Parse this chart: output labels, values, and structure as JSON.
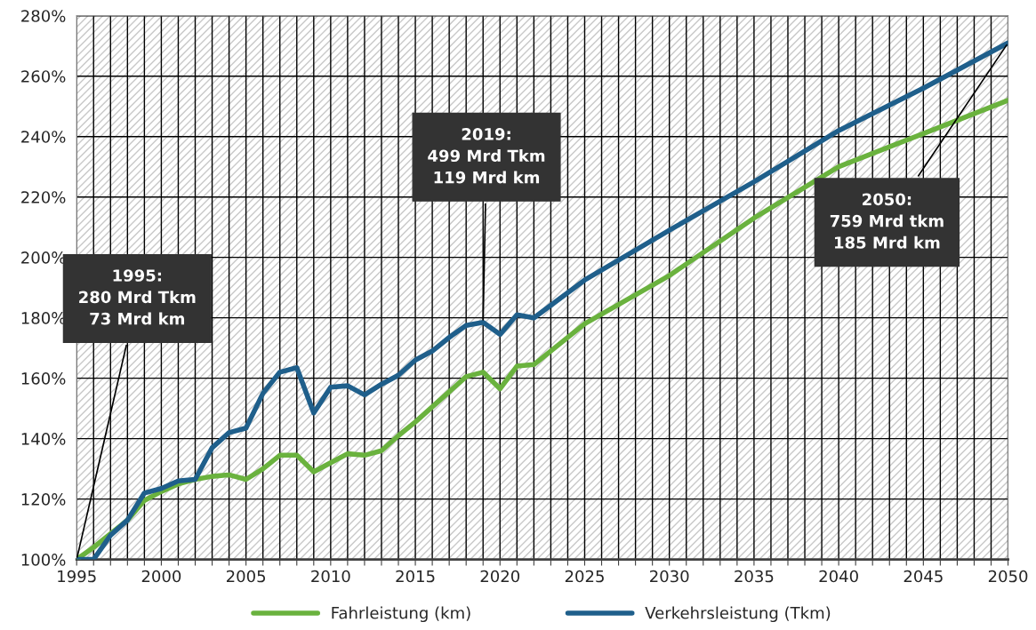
{
  "chart_data": {
    "type": "line",
    "xlim": [
      1995,
      2050
    ],
    "ylim": [
      100,
      280
    ],
    "xticks": [
      {
        "value": 1995,
        "label": "1995"
      },
      {
        "value": 1996,
        "label": null
      },
      {
        "value": 1997,
        "label": null
      },
      {
        "value": 1998,
        "label": null
      },
      {
        "value": 1999,
        "label": null
      },
      {
        "value": 2000,
        "label": "2000"
      },
      {
        "value": 2001,
        "label": null
      },
      {
        "value": 2002,
        "label": null
      },
      {
        "value": 2003,
        "label": null
      },
      {
        "value": 2004,
        "label": null
      },
      {
        "value": 2005,
        "label": "2005"
      },
      {
        "value": 2006,
        "label": null
      },
      {
        "value": 2007,
        "label": null
      },
      {
        "value": 2008,
        "label": null
      },
      {
        "value": 2009,
        "label": null
      },
      {
        "value": 2010,
        "label": "2010"
      },
      {
        "value": 2011,
        "label": null
      },
      {
        "value": 2012,
        "label": null
      },
      {
        "value": 2013,
        "label": null
      },
      {
        "value": 2014,
        "label": null
      },
      {
        "value": 2015,
        "label": "2015"
      },
      {
        "value": 2016,
        "label": null
      },
      {
        "value": 2017,
        "label": null
      },
      {
        "value": 2018,
        "label": null
      },
      {
        "value": 2019,
        "label": null
      },
      {
        "value": 2020,
        "label": "2020"
      },
      {
        "value": 2021,
        "label": null
      },
      {
        "value": 2022,
        "label": null
      },
      {
        "value": 2023,
        "label": null
      },
      {
        "value": 2024,
        "label": null
      },
      {
        "value": 2025,
        "label": "2025"
      },
      {
        "value": 2026,
        "label": null
      },
      {
        "value": 2027,
        "label": null
      },
      {
        "value": 2028,
        "label": null
      },
      {
        "value": 2029,
        "label": null
      },
      {
        "value": 2030,
        "label": "2030"
      },
      {
        "value": 2031,
        "label": null
      },
      {
        "value": 2032,
        "label": null
      },
      {
        "value": 2033,
        "label": null
      },
      {
        "value": 2034,
        "label": null
      },
      {
        "value": 2035,
        "label": "2035"
      },
      {
        "value": 2036,
        "label": null
      },
      {
        "value": 2037,
        "label": null
      },
      {
        "value": 2038,
        "label": null
      },
      {
        "value": 2039,
        "label": null
      },
      {
        "value": 2040,
        "label": "2040"
      },
      {
        "value": 2041,
        "label": null
      },
      {
        "value": 2042,
        "label": null
      },
      {
        "value": 2043,
        "label": null
      },
      {
        "value": 2044,
        "label": null
      },
      {
        "value": 2045,
        "label": "2045"
      },
      {
        "value": 2046,
        "label": null
      },
      {
        "value": 2047,
        "label": null
      },
      {
        "value": 2048,
        "label": null
      },
      {
        "value": 2049,
        "label": null
      },
      {
        "value": 2050,
        "label": "2050"
      }
    ],
    "yticks": [
      {
        "value": 100,
        "label": "100%"
      },
      {
        "value": 120,
        "label": "120%"
      },
      {
        "value": 140,
        "label": "140%"
      },
      {
        "value": 160,
        "label": "160%"
      },
      {
        "value": 180,
        "label": "180%"
      },
      {
        "value": 200,
        "label": "200%"
      },
      {
        "value": 220,
        "label": "220%"
      },
      {
        "value": 240,
        "label": "240%"
      },
      {
        "value": 260,
        "label": "260%"
      },
      {
        "value": 280,
        "label": "280%"
      }
    ],
    "grid": true,
    "legend": "bottom",
    "marker": "none",
    "line_style": "solid",
    "series": [
      {
        "name": "Fahrleistung (km)",
        "color": "#6ab23e",
        "x": [
          1995,
          1996,
          1997,
          1998,
          1999,
          2000,
          2001,
          2002,
          2003,
          2004,
          2005,
          2006,
          2007,
          2008,
          2009,
          2010,
          2011,
          2012,
          2013,
          2014,
          2015,
          2016,
          2017,
          2018,
          2019,
          2020,
          2021,
          2022,
          2025,
          2030,
          2035,
          2040,
          2045,
          2050
        ],
        "values": [
          100,
          104,
          108.5,
          113,
          119.5,
          122.5,
          125,
          126.5,
          127.5,
          128,
          126.5,
          130,
          134.5,
          134.5,
          129,
          132,
          135,
          134.5,
          136,
          141,
          145.5,
          150.5,
          155.5,
          160.5,
          162,
          156.5,
          164,
          164.5,
          178,
          194,
          213,
          230,
          241,
          252
        ]
      },
      {
        "name": "Verkehrsleistung (Tkm)",
        "color": "#1f5f8b",
        "x": [
          1995,
          1996,
          1997,
          1998,
          1999,
          2000,
          2001,
          2002,
          2003,
          2004,
          2005,
          2006,
          2007,
          2008,
          2009,
          2010,
          2011,
          2012,
          2013,
          2014,
          2015,
          2016,
          2017,
          2018,
          2019,
          2020,
          2021,
          2022,
          2025,
          2030,
          2035,
          2040,
          2045,
          2050
        ],
        "values": [
          100,
          100,
          108,
          113,
          122,
          123.5,
          126,
          126.5,
          137,
          142,
          143.5,
          155,
          162,
          163.5,
          148.5,
          157,
          157.5,
          154.5,
          158,
          161,
          166,
          169,
          173.5,
          177.5,
          178.5,
          174.5,
          181,
          180,
          192.5,
          209,
          225,
          242,
          256,
          271
        ]
      }
    ],
    "annotations": [
      {
        "text": "1995:\n280 Mrd Tkm\n73 Mrd km",
        "x": 1995,
        "y": 100
      },
      {
        "text": "2019:\n499 Mrd Tkm\n119 Mrd km",
        "x": 2019,
        "y": 178.5
      },
      {
        "text": "2050:\n759 Mrd tkm\n185 Mrd km",
        "x": 2050,
        "y": 271
      }
    ]
  }
}
